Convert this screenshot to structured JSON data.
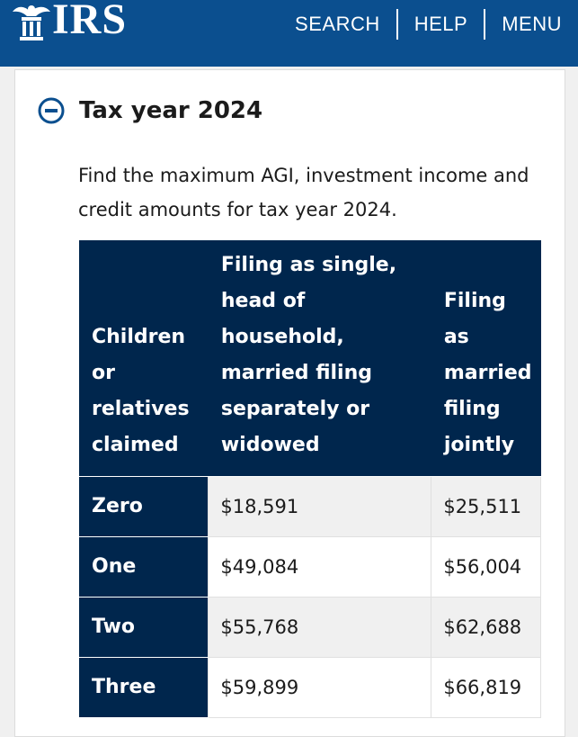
{
  "header": {
    "logo_text": "IRS",
    "logo_icon": "irs-eagle-icon",
    "nav": [
      "SEARCH",
      "HELP",
      "MENU"
    ],
    "colors": {
      "bar": "#0b4f8f",
      "text": "#ffffff"
    }
  },
  "section": {
    "toggle_icon": "minus-circle-icon",
    "title": "Tax year 2024",
    "intro": "Find the maximum AGI, investment income and credit amounts for tax year 2024."
  },
  "table": {
    "headers": [
      "Children or relatives claimed",
      "Filing as single, head of household, married filing separately or widowed",
      "Filing as married filing jointly"
    ],
    "rows": [
      {
        "label": "Zero",
        "single": "$18,591",
        "joint": "$25,511"
      },
      {
        "label": "One",
        "single": "$49,084",
        "joint": "$56,004"
      },
      {
        "label": "Two",
        "single": "$55,768",
        "joint": "$62,688"
      },
      {
        "label": "Three",
        "single": "$59,899",
        "joint": "$66,819"
      }
    ],
    "colors": {
      "header_bg": "#00264d",
      "stripe": "#f0f0f0"
    }
  }
}
